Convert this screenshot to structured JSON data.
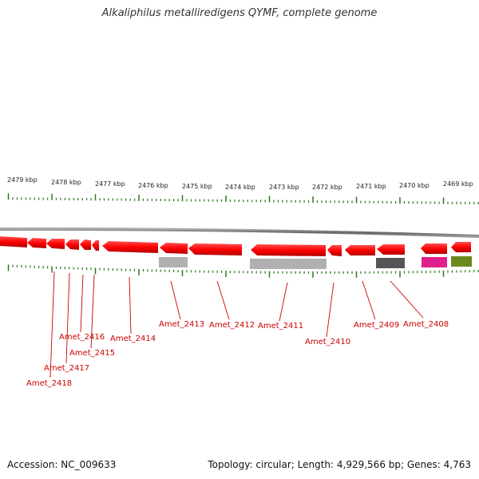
{
  "title": "Alkaliphilus metalliredigens QYMF, complete genome",
  "footer": {
    "accession": "Accession: NC_009633",
    "summary": "Topology: circular; Length: 4,929,566 bp; Genes: 4,763"
  },
  "scale_labels": [
    "2479 kbp",
    "2478 kbp",
    "2477 kbp",
    "2476 kbp",
    "2475 kbp",
    "2474 kbp",
    "2473 kbp",
    "2472 kbp",
    "2471 kbp",
    "2470 kbp",
    "2469 kbp"
  ],
  "genes": [
    "Amet_2418",
    "Amet_2417",
    "Amet_2416",
    "Amet_2415",
    "Amet_2414",
    "Amet_2413",
    "Amet_2412",
    "Amet_2411",
    "Amet_2410",
    "Amet_2409",
    "Amet_2408"
  ],
  "colors": {
    "gene": "#ff0000",
    "backbone": "#888888",
    "tick": "#2a7a1a",
    "label": "#cc0000",
    "feature_light": "#b0b0b0",
    "feature_dark": "#555555",
    "feature_pink": "#e0208c",
    "feature_olive": "#6a8a1e"
  }
}
